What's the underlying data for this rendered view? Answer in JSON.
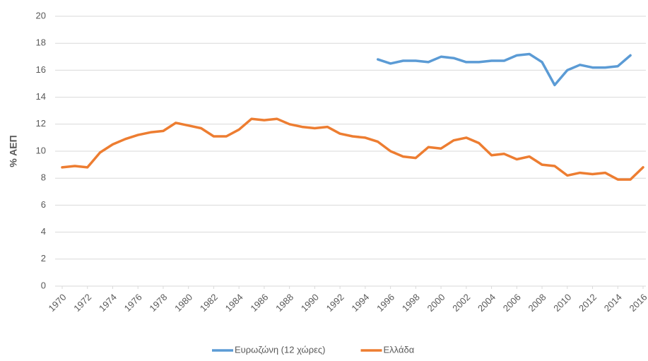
{
  "chart_data": {
    "type": "line",
    "y_label": "% ΑΕΠ",
    "x": [
      1970,
      1971,
      1972,
      1973,
      1974,
      1975,
      1976,
      1977,
      1978,
      1979,
      1980,
      1981,
      1982,
      1983,
      1984,
      1985,
      1986,
      1987,
      1988,
      1989,
      1990,
      1991,
      1992,
      1993,
      1994,
      1995,
      1996,
      1997,
      1998,
      1999,
      2000,
      2001,
      2002,
      2003,
      2004,
      2005,
      2006,
      2007,
      2008,
      2009,
      2010,
      2011,
      2012,
      2013,
      2014,
      2015,
      2016
    ],
    "series": [
      {
        "name": "Ευρωζώνη (12 χώρες)",
        "color": "#5b9bd5",
        "values": [
          null,
          null,
          null,
          null,
          null,
          null,
          null,
          null,
          null,
          null,
          null,
          null,
          null,
          null,
          null,
          null,
          null,
          null,
          null,
          null,
          null,
          null,
          null,
          null,
          null,
          16.8,
          16.5,
          16.7,
          16.7,
          16.6,
          17.0,
          16.9,
          16.6,
          16.6,
          16.7,
          16.7,
          17.1,
          17.2,
          16.6,
          14.9,
          16.0,
          16.4,
          16.2,
          16.2,
          16.3,
          17.1,
          null
        ]
      },
      {
        "name": "Ελλάδα",
        "color": "#ed7d31",
        "values": [
          8.8,
          8.9,
          8.8,
          9.9,
          10.5,
          10.9,
          11.2,
          11.4,
          11.5,
          12.1,
          11.9,
          11.7,
          11.1,
          11.1,
          11.6,
          12.4,
          12.3,
          12.4,
          12.0,
          11.8,
          11.7,
          11.8,
          11.3,
          11.1,
          11.0,
          10.7,
          10.0,
          9.6,
          9.5,
          10.3,
          10.2,
          10.8,
          11.0,
          10.6,
          9.7,
          9.8,
          9.4,
          9.6,
          9.0,
          8.9,
          8.2,
          8.4,
          8.3,
          8.4,
          7.9,
          7.9,
          8.8
        ]
      }
    ],
    "xlim": [
      1970,
      2016
    ],
    "xticks": [
      1970,
      1972,
      1974,
      1976,
      1978,
      1980,
      1982,
      1984,
      1986,
      1988,
      1990,
      1992,
      1994,
      1996,
      1998,
      2000,
      2002,
      2004,
      2006,
      2008,
      2010,
      2012,
      2014,
      2016
    ],
    "ylim": [
      0,
      20
    ],
    "yticks": [
      0,
      2,
      4,
      6,
      8,
      10,
      12,
      14,
      16,
      18,
      20
    ],
    "grid": true,
    "legend": "bottom"
  }
}
